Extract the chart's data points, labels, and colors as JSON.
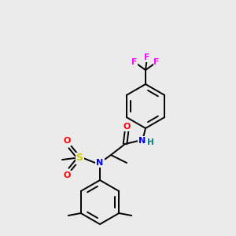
{
  "bg_color": "#ebebeb",
  "bond_color": "#000000",
  "atom_colors": {
    "N": "#0000ff",
    "O": "#ff0000",
    "S": "#cccc00",
    "F": "#ff00ff",
    "H": "#008080",
    "C": "#000000"
  },
  "lw": 1.4,
  "ring_r": 26,
  "inner_r": 21
}
